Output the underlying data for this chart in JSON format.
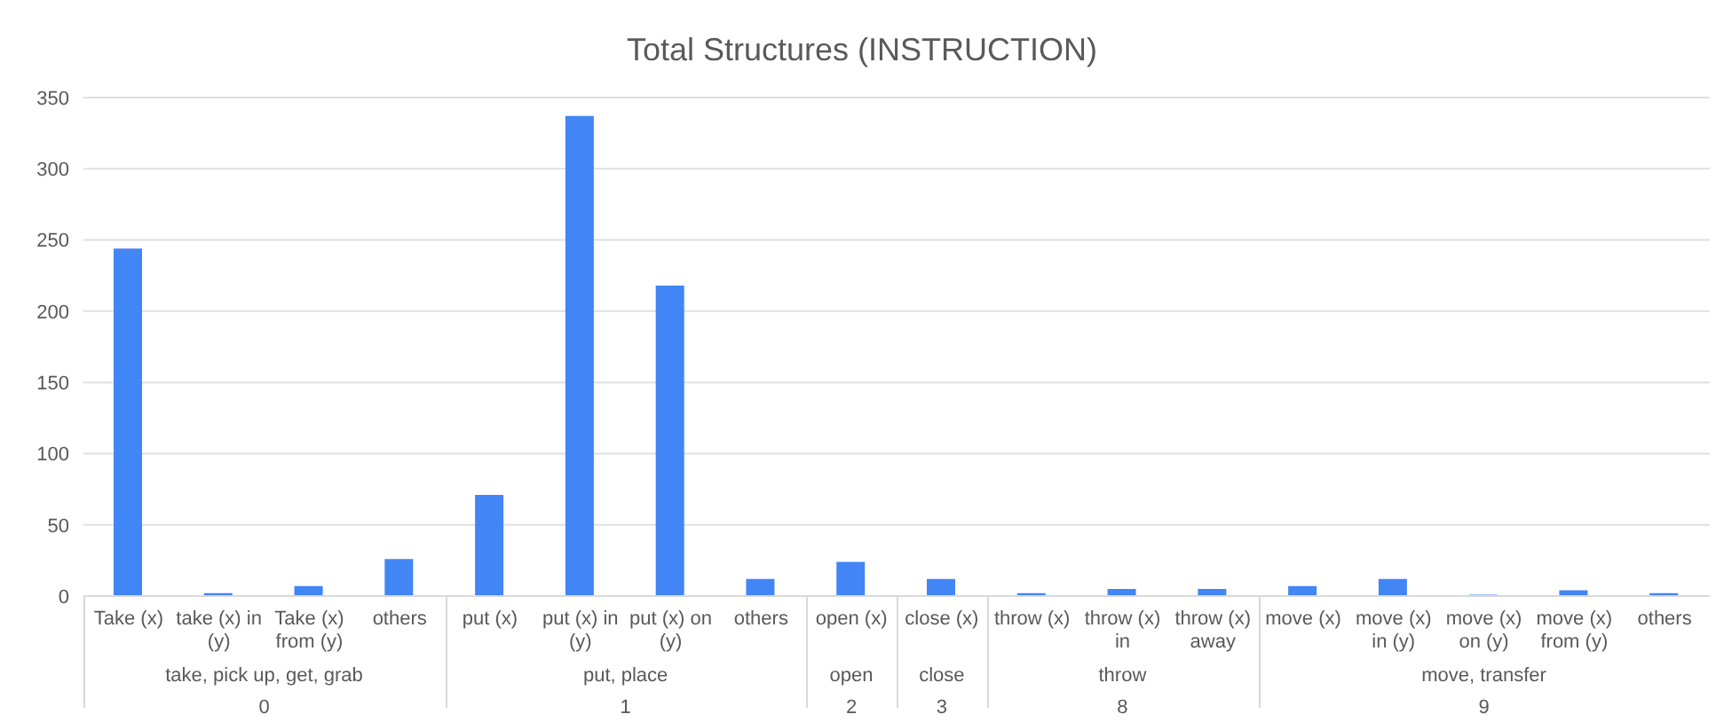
{
  "chart_data": {
    "type": "bar",
    "title": "Total Structures (INSTRUCTION)",
    "categories": [
      "Take (x)",
      "take (x) in (y)",
      "Take (x) from (y)",
      "others",
      "put (x)",
      "put (x) in (y)",
      "put (x) on (y)",
      "others",
      "open (x)",
      "close (x)",
      "throw (x)",
      "throw (x) in",
      "throw (x) away",
      "move (x)",
      "move (x) in (y)",
      "move (x) on (y)",
      "move (x) from (y)",
      "others"
    ],
    "values": [
      244,
      2,
      7,
      26,
      71,
      337,
      218,
      12,
      24,
      12,
      2,
      5,
      5,
      7,
      12,
      1,
      4,
      2
    ],
    "color": "#4285f4",
    "ylim": [
      0,
      350
    ],
    "yticks": [
      0,
      50,
      100,
      150,
      200,
      250,
      300,
      350
    ],
    "grid": "y",
    "annotations": [
      "take, pick up, get, grab",
      "0",
      "put, place",
      "1",
      "open",
      "2",
      "close",
      "3",
      "throw",
      "8",
      "move, transfer",
      "9"
    ]
  }
}
